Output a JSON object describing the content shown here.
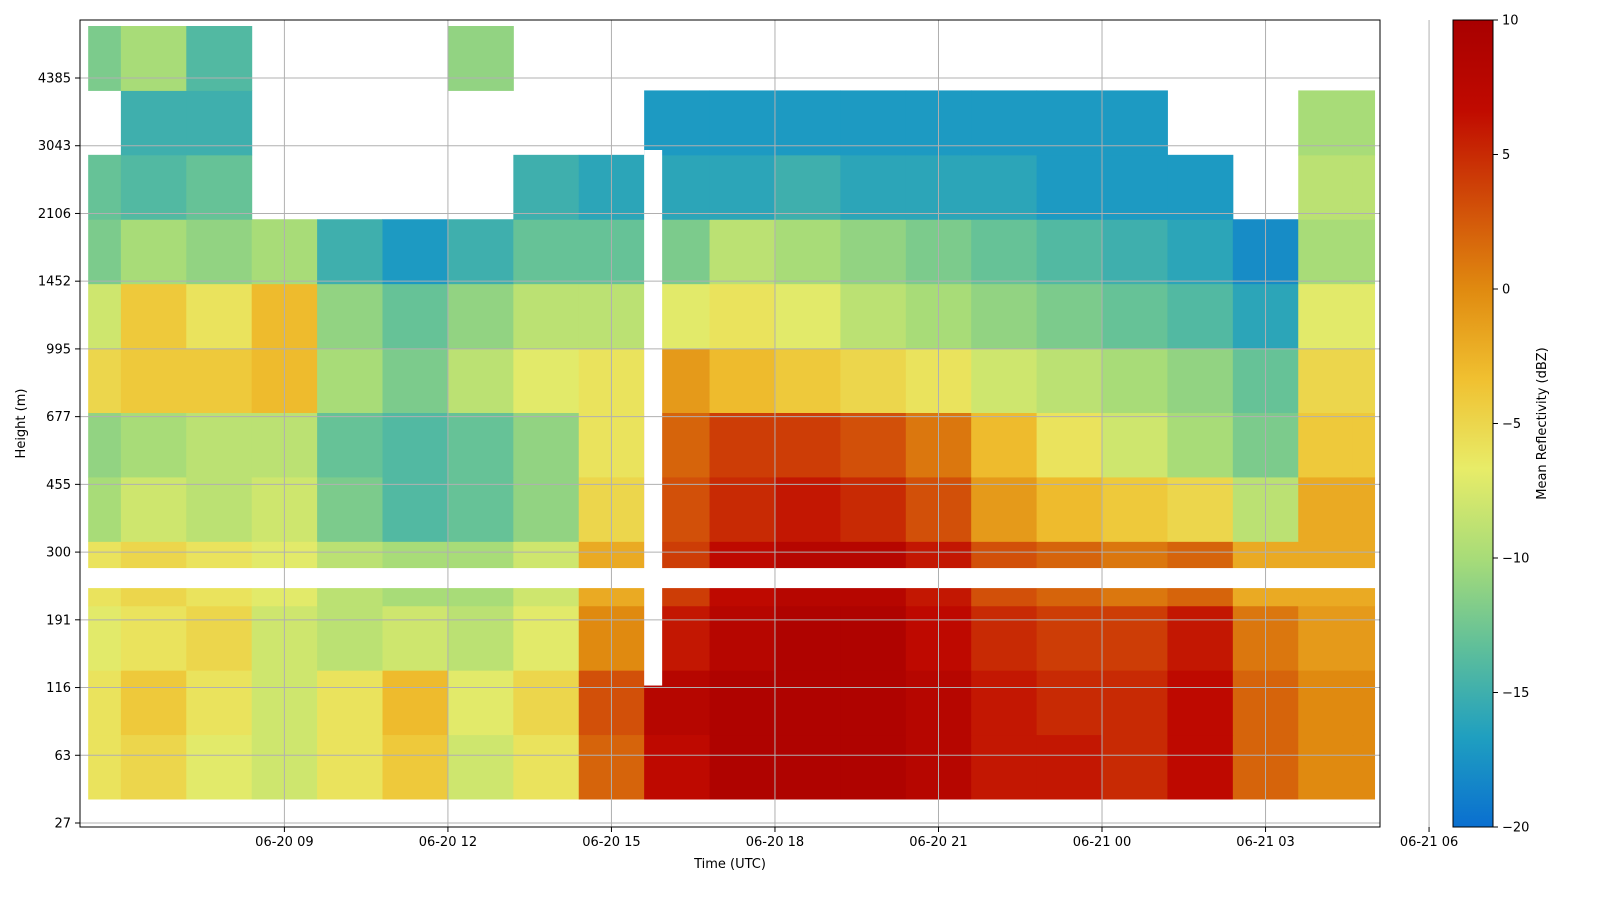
{
  "chart_data": {
    "type": "heatmap",
    "title": "",
    "xlabel": "Time (UTC)",
    "ylabel": "Height (m)",
    "x_range_hours": [
      -3.75,
      20.1
    ],
    "x_ticks": [
      {
        "label": "06-20 09",
        "hour": 0
      },
      {
        "label": "06-20 12",
        "hour": 3
      },
      {
        "label": "06-20 15",
        "hour": 6
      },
      {
        "label": "06-20 18",
        "hour": 9
      },
      {
        "label": "06-20 21",
        "hour": 12
      },
      {
        "label": "06-21 00",
        "hour": 15
      },
      {
        "label": "06-21 03",
        "hour": 18
      },
      {
        "label": "06-21 06",
        "hour": 21
      }
    ],
    "y_ticks": [
      "27",
      "63",
      "116",
      "191",
      "300",
      "455",
      "677",
      "995",
      "1452",
      "2106",
      "3043",
      "4385"
    ],
    "y_scale": "index (nonuniform height levels)",
    "grid": true,
    "colorbar": {
      "label": "Mean Reflectivity (dBZ)",
      "min": -20,
      "max": 10,
      "ticks": [
        "10",
        "5",
        "0",
        "−5",
        "−10",
        "−15",
        "−20"
      ],
      "colormap": [
        "#0a6fd0",
        "#1f9fc0",
        "#5fbf9a",
        "#a8dc78",
        "#e8ec68",
        "#f0c030",
        "#e08a10",
        "#d04a08",
        "#c00a00",
        "#a80000"
      ]
    },
    "time_series_hours": [
      -3.6,
      -2.4,
      -1.2,
      0.0,
      1.2,
      2.4,
      3.6,
      4.8,
      6.0,
      7.2,
      8.4,
      9.6,
      10.8,
      12.0,
      13.2,
      14.4,
      15.6,
      16.8,
      18.0,
      19.2,
      20.0
    ],
    "height_series_m": [
      45,
      90,
      150,
      240,
      380,
      560,
      820,
      1200,
      1750,
      2500,
      3500,
      4800
    ],
    "reflectivity_dbz": [
      [
        -6,
        -5,
        -7,
        -8,
        -6,
        -4,
        -8,
        -6,
        2,
        7,
        9,
        9,
        9,
        8,
        6,
        6,
        5,
        7,
        2,
        0,
        0
      ],
      [
        -6,
        -4,
        -6,
        -8,
        -6,
        -3,
        -7,
        -5,
        3,
        8,
        9,
        9,
        9,
        8,
        6,
        5,
        5,
        7,
        2,
        0,
        0
      ],
      [
        -7,
        -6,
        -5,
        -8,
        -9,
        -8,
        -9,
        -7,
        0,
        6,
        8,
        9,
        9,
        7,
        5,
        4,
        4,
        6,
        1,
        -1,
        -1
      ],
      [
        -6,
        -5,
        -6,
        -7,
        -9,
        -10,
        -10,
        -8,
        -2,
        4,
        7,
        8,
        8,
        6,
        3,
        2,
        1,
        2,
        -2,
        -2,
        -2
      ],
      [
        -10,
        -8,
        -9,
        -8,
        -12,
        -14,
        -13,
        -11,
        -5,
        3,
        5,
        6,
        5,
        3,
        -1,
        -3,
        -4,
        -5,
        -9,
        -2,
        -2
      ],
      [
        -11,
        -10,
        -9,
        -9,
        -13,
        -14,
        -13,
        -11,
        -6,
        2,
        4,
        4,
        3,
        1,
        -3,
        -6,
        -8,
        -10,
        -12,
        -4,
        -4
      ],
      [
        -5,
        -4,
        -4,
        -3,
        -10,
        -12,
        -9,
        -7,
        -6,
        -1,
        -3,
        -4,
        -5,
        -6,
        -8,
        -9,
        -10,
        -11,
        -13,
        -5,
        -5
      ],
      [
        -8,
        -4,
        -6,
        -3,
        -11,
        -13,
        -11,
        -9,
        -9,
        -7,
        -6,
        -7,
        -9,
        -10,
        -11,
        -12,
        -13,
        -14,
        -16,
        -7,
        -7
      ],
      [
        -12,
        -10,
        -11,
        -10,
        -15,
        -17,
        -15,
        -13,
        -13,
        -12,
        -9,
        -10,
        -11,
        -12,
        -13,
        -14,
        -15,
        -16,
        -18,
        -10,
        -10
      ],
      [
        -13,
        -14,
        -13,
        null,
        null,
        null,
        null,
        -15,
        -16,
        -16,
        -16,
        -15,
        -16,
        -16,
        -16,
        -17,
        -17,
        -17,
        null,
        -9,
        -9
      ],
      [
        null,
        -15,
        -15,
        null,
        null,
        null,
        null,
        null,
        null,
        -17,
        -17,
        -17,
        -17,
        -17,
        -17,
        -17,
        -17,
        null,
        null,
        -10,
        -10
      ],
      [
        -12,
        -10,
        -14,
        null,
        null,
        null,
        -11,
        null,
        null,
        null,
        null,
        null,
        null,
        null,
        null,
        null,
        null,
        null,
        null,
        null,
        null
      ]
    ]
  }
}
